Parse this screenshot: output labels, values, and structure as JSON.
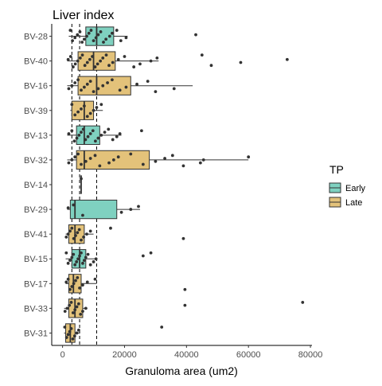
{
  "chart_data": {
    "type": "boxplot",
    "title": "Liver index",
    "xlabel": "Granuloma area (um2)",
    "ylabel": "",
    "xlim": [
      -3500,
      80500
    ],
    "x_ticks": [
      0,
      20000,
      40000,
      60000,
      80000
    ],
    "x_tick_labels": [
      "0",
      "20000",
      "40000",
      "60000",
      "80000"
    ],
    "reference_lines": [
      3000,
      5500,
      11000
    ],
    "legend": {
      "title": "TP",
      "position": "right",
      "entries": [
        {
          "label": "Early",
          "color": "#7fd1c0"
        },
        {
          "label": "Late",
          "color": "#e3c27a"
        }
      ]
    },
    "groups": [
      {
        "label": "BV-28",
        "tp": "Early",
        "q1": 7500,
        "median": 11000,
        "q3": 16500,
        "whisker_low": 2000,
        "whisker_high": 21000,
        "points": [
          2500,
          3200,
          4000,
          4800,
          5600,
          6300,
          7000,
          7800,
          8500,
          9200,
          10000,
          10800,
          11500,
          12300,
          13200,
          14000,
          15200,
          16000,
          17500,
          18800,
          20500,
          43000
        ]
      },
      {
        "label": "BV-40",
        "tp": "Late",
        "q1": 5000,
        "median": 10000,
        "q3": 17000,
        "whisker_low": 1500,
        "whisker_high": 31000,
        "points": [
          1800,
          2600,
          3400,
          4100,
          4900,
          5700,
          6400,
          7200,
          8000,
          8800,
          9600,
          10500,
          11300,
          12200,
          13000,
          14100,
          15000,
          16200,
          18000,
          20000,
          23000,
          25000,
          28500,
          30500,
          45000,
          48000,
          57500,
          72500
        ]
      },
      {
        "label": "BV-16",
        "tp": "Late",
        "q1": 5000,
        "median": 11000,
        "q3": 22000,
        "whisker_low": 1500,
        "whisker_high": 42000,
        "points": [
          2000,
          3000,
          4000,
          5000,
          6000,
          7000,
          8000,
          9000,
          10000,
          11500,
          13000,
          14500,
          16000,
          18500,
          20500,
          24000,
          27500,
          30000,
          36000
        ]
      },
      {
        "label": "BV-39",
        "tp": "Late",
        "q1": 3000,
        "median": 7000,
        "q3": 10000,
        "whisker_low": 2500,
        "whisker_high": 13000,
        "points": [
          3000,
          4000,
          5000,
          6000,
          7000,
          8000,
          9000,
          10000,
          11000,
          12500
        ]
      },
      {
        "label": "BV-13",
        "tp": "Early",
        "q1": 4500,
        "median": 7000,
        "q3": 12000,
        "whisker_low": 1500,
        "whisker_high": 19000,
        "points": [
          2000,
          3000,
          3800,
          4600,
          5300,
          6000,
          6700,
          7400,
          8200,
          9000,
          9800,
          10600,
          11500,
          12500,
          13600,
          14800,
          16200,
          17500,
          18500,
          25500
        ]
      },
      {
        "label": "BV-32",
        "tp": "Late",
        "q1": 4500,
        "median": 7000,
        "q3": 28000,
        "whisker_low": 1500,
        "whisker_high": 60000,
        "points": [
          2000,
          3000,
          4000,
          5000,
          6000,
          7500,
          9000,
          10500,
          12000,
          15000,
          16500,
          18000,
          22000,
          26000,
          30000,
          33000,
          35500,
          39000,
          44500,
          45500,
          60000
        ]
      },
      {
        "label": "BV-14",
        "tp": "Early",
        "q1": 6000,
        "median": 6000,
        "q3": 6000,
        "whisker_low": 6000,
        "whisker_high": 6000,
        "points": [
          6000
        ]
      },
      {
        "label": "BV-29",
        "tp": "Early",
        "q1": 2500,
        "median": 4000,
        "q3": 17500,
        "whisker_low": 1500,
        "whisker_high": 25000,
        "points": [
          1800,
          3500,
          6500,
          19000,
          22000,
          24500
        ]
      },
      {
        "label": "BV-41",
        "tp": "Late",
        "q1": 2000,
        "median": 4000,
        "q3": 7000,
        "whisker_low": 1000,
        "whisker_high": 10000,
        "points": [
          1200,
          1800,
          2400,
          3000,
          3600,
          4200,
          4800,
          5400,
          6000,
          6800,
          7800,
          9000,
          15500,
          39000
        ]
      },
      {
        "label": "BV-15",
        "tp": "Early",
        "q1": 3000,
        "median": 5500,
        "q3": 7500,
        "whisker_low": 1000,
        "whisker_high": 11000,
        "points": [
          1200,
          1800,
          2400,
          3000,
          3500,
          4000,
          4500,
          5000,
          5500,
          6000,
          6500,
          7000,
          7500,
          8200,
          9000,
          10000,
          10800,
          26000,
          28500
        ]
      },
      {
        "label": "BV-17",
        "tp": "Late",
        "q1": 2000,
        "median": 3500,
        "q3": 6000,
        "whisker_low": 1000,
        "whisker_high": 11000,
        "points": [
          1200,
          1800,
          2400,
          3000,
          3600,
          4200,
          4800,
          5500,
          6500,
          8000,
          10500,
          39500
        ]
      },
      {
        "label": "BV-33",
        "tp": "Late",
        "q1": 2000,
        "median": 4000,
        "q3": 6500,
        "whisker_low": 500,
        "whisker_high": 8000,
        "points": [
          800,
          1500,
          2200,
          2800,
          3400,
          4000,
          4600,
          5200,
          5800,
          6500,
          7500,
          39500,
          77500
        ]
      },
      {
        "label": "BV-31",
        "tp": "Late",
        "q1": 1000,
        "median": 2500,
        "q3": 4000,
        "whisker_low": 500,
        "whisker_high": 5500,
        "points": [
          700,
          1300,
          1800,
          2300,
          2800,
          3300,
          3900,
          4600,
          5200,
          32000
        ]
      }
    ]
  }
}
